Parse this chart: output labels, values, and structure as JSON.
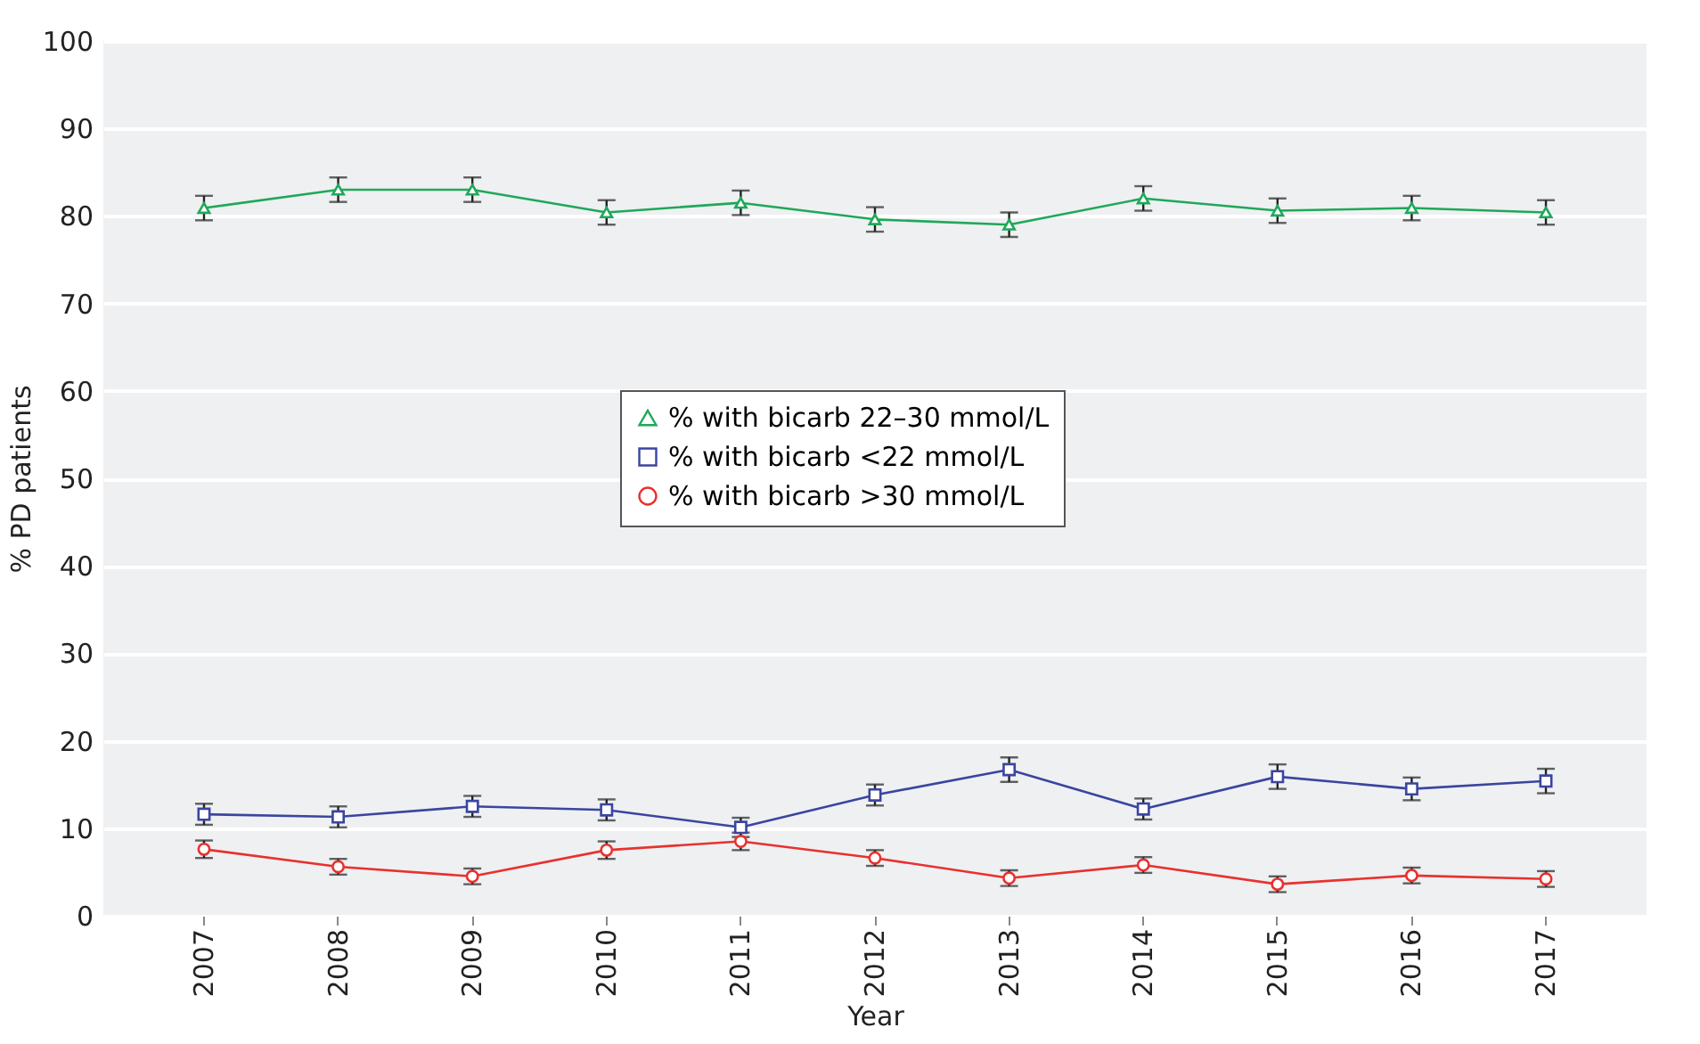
{
  "chart_data": {
    "type": "line",
    "xlabel": "Year",
    "ylabel": "% PD patients",
    "categories": [
      "2007",
      "2008",
      "2009",
      "2010",
      "2011",
      "2012",
      "2013",
      "2014",
      "2015",
      "2016",
      "2017"
    ],
    "series": [
      {
        "name": "% with bicarb 22–30 mmol/L",
        "color": "#1fa85a",
        "marker": "triangle",
        "values": [
          80.9,
          83,
          83,
          80.4,
          81.5,
          79.6,
          79,
          82,
          80.6,
          80.9,
          80.4
        ],
        "errors": [
          1.4,
          1.4,
          1.4,
          1.4,
          1.4,
          1.4,
          1.4,
          1.4,
          1.4,
          1.4,
          1.4
        ]
      },
      {
        "name": "% with bicarb <22 mmol/L",
        "color": "#3b45a0",
        "marker": "square",
        "values": [
          11.6,
          11.3,
          12.5,
          12.1,
          10.1,
          13.8,
          16.7,
          12.2,
          15.9,
          14.5,
          15.4
        ],
        "errors": [
          1.2,
          1.2,
          1.2,
          1.2,
          1.1,
          1.2,
          1.4,
          1.2,
          1.4,
          1.3,
          1.4
        ]
      },
      {
        "name": "% with bicarb >30 mmol/L",
        "color": "#e8312f",
        "marker": "circle",
        "values": [
          7.6,
          5.6,
          4.5,
          7.5,
          8.5,
          6.6,
          4.3,
          5.8,
          3.6,
          4.6,
          4.2
        ],
        "errors": [
          1,
          0.9,
          0.9,
          1,
          1,
          0.9,
          0.9,
          0.9,
          0.9,
          0.9,
          0.9
        ]
      }
    ],
    "ylim": [
      0,
      100
    ],
    "yticks": [
      0,
      10,
      20,
      30,
      40,
      50,
      60,
      70,
      80,
      90,
      100
    ],
    "grid": "y",
    "legend": "center",
    "line_style": "solid"
  }
}
